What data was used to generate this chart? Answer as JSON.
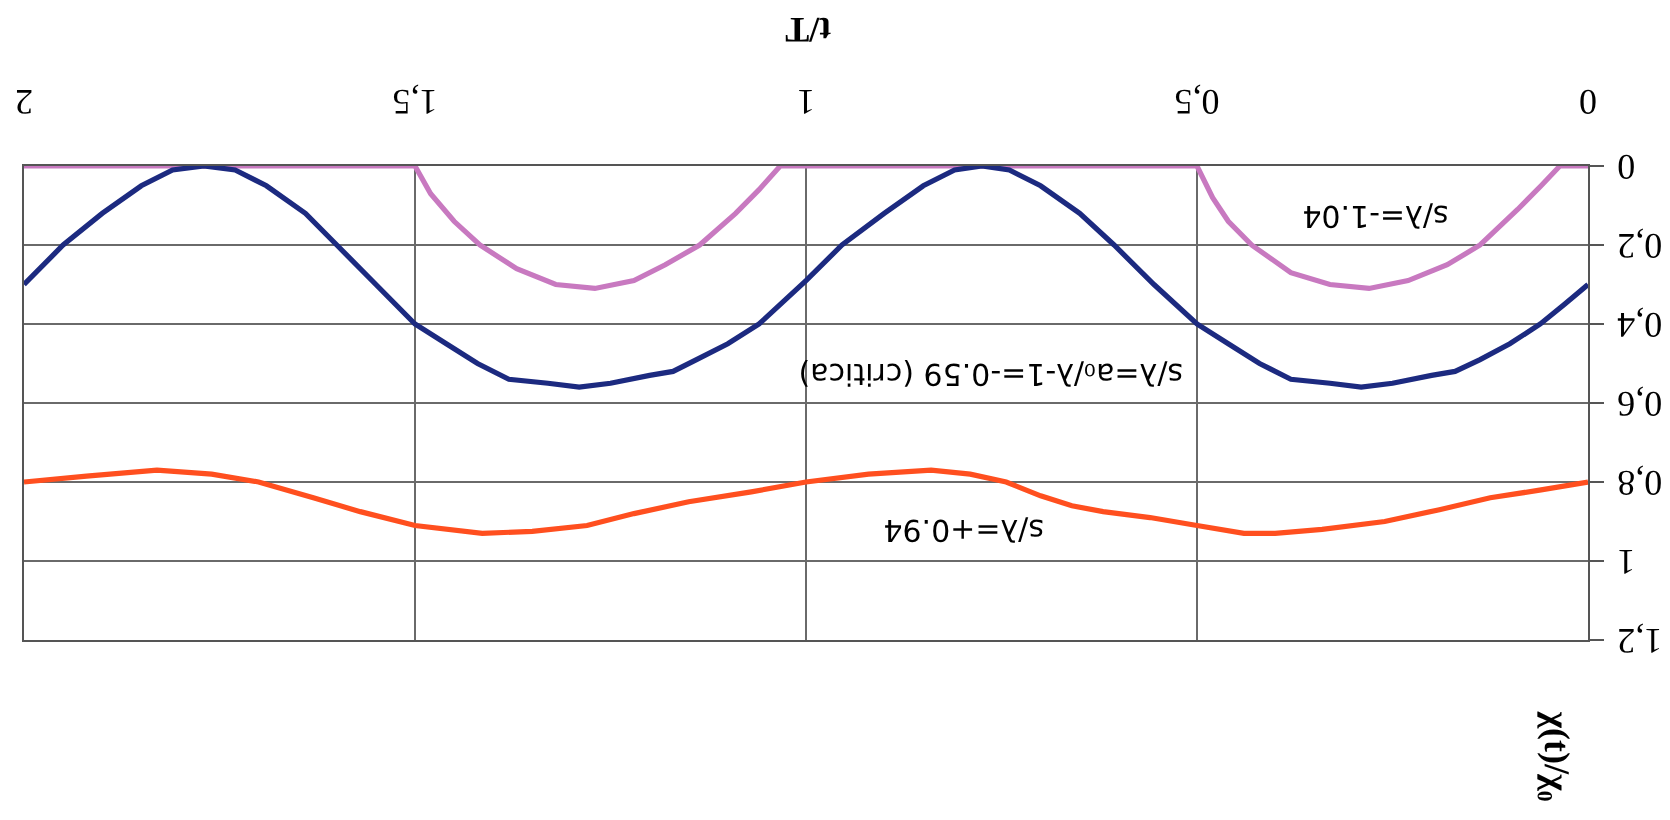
{
  "chart_data": {
    "type": "line",
    "xlabel": "t/T",
    "ylabel": "χ(t)/χ₀",
    "xlim": [
      2,
      0
    ],
    "ylim": [
      1.2,
      0
    ],
    "xticks": [
      0,
      {
        "value": 0.5,
        "label": "0,5"
      },
      1,
      {
        "value": 1.5,
        "label": "1,5"
      },
      2
    ],
    "yticks": [
      0,
      {
        "value": 0.2,
        "label": "0,2"
      },
      {
        "value": 0.4,
        "label": "0,4"
      },
      {
        "value": 0.6,
        "label": "0,6"
      },
      {
        "value": 0.8,
        "label": "0,8"
      },
      1,
      {
        "value": 1.2,
        "label": "1,2"
      }
    ],
    "grid": true,
    "series": [
      {
        "color": "#c879c0",
        "x": [
          0,
          0.036,
          0.06,
          0.09,
          0.138,
          0.18,
          0.23,
          0.28,
          0.33,
          0.38,
          0.43,
          0.46,
          0.48,
          0.5,
          0.75,
          1.033,
          1.06,
          1.09,
          1.136,
          1.18,
          1.22,
          1.27,
          1.32,
          1.37,
          1.417,
          1.45,
          1.48,
          1.5,
          1.75,
          2
        ],
        "values": [
          0,
          0,
          0.05,
          0.11,
          0.2,
          0.25,
          0.29,
          0.31,
          0.3,
          0.27,
          0.2,
          0.14,
          0.08,
          0,
          0,
          0,
          0.06,
          0.12,
          0.2,
          0.25,
          0.29,
          0.31,
          0.3,
          0.26,
          0.2,
          0.14,
          0.07,
          0,
          0,
          0
        ]
      },
      {
        "color": "#1c2a80",
        "x": [
          0,
          0.03,
          0.061,
          0.1,
          0.138,
          0.17,
          0.2,
          0.25,
          0.29,
          0.33,
          0.38,
          0.42,
          0.46,
          0.5,
          0.555,
          0.606,
          0.65,
          0.7,
          0.74,
          0.775,
          0.81,
          0.85,
          0.9,
          0.954,
          1,
          1.06,
          1.1,
          1.14,
          1.17,
          1.2,
          1.25,
          1.29,
          1.33,
          1.38,
          1.42,
          1.46,
          1.5,
          1.55,
          1.6,
          1.64,
          1.69,
          1.73,
          1.77,
          1.81,
          1.85,
          1.9,
          1.95,
          2
        ],
        "values": [
          0.3,
          0.35,
          0.4,
          0.45,
          0.49,
          0.52,
          0.53,
          0.55,
          0.56,
          0.55,
          0.54,
          0.5,
          0.45,
          0.4,
          0.3,
          0.2,
          0.12,
          0.05,
          0.01,
          0,
          0.01,
          0.05,
          0.12,
          0.2,
          0.29,
          0.4,
          0.45,
          0.49,
          0.52,
          0.53,
          0.55,
          0.56,
          0.55,
          0.54,
          0.5,
          0.45,
          0.4,
          0.3,
          0.2,
          0.12,
          0.05,
          0.01,
          0,
          0.01,
          0.05,
          0.12,
          0.2,
          0.3
        ]
      },
      {
        "color": "#ff4f1f",
        "x": [
          0,
          0.06,
          0.125,
          0.19,
          0.26,
          0.34,
          0.4,
          0.44,
          0.5,
          0.56,
          0.62,
          0.66,
          0.7,
          0.744,
          0.79,
          0.84,
          0.92,
          1,
          1.07,
          1.15,
          1.22,
          1.28,
          1.35,
          1.414,
          1.5,
          1.57,
          1.63,
          1.7,
          1.76,
          1.83,
          1.92,
          2
        ],
        "values": [
          0.8,
          0.82,
          0.84,
          0.87,
          0.9,
          0.92,
          0.93,
          0.93,
          0.91,
          0.89,
          0.875,
          0.86,
          0.835,
          0.8,
          0.78,
          0.77,
          0.78,
          0.8,
          0.825,
          0.85,
          0.88,
          0.91,
          0.925,
          0.93,
          0.91,
          0.875,
          0.84,
          0.8,
          0.78,
          0.77,
          0.785,
          0.8
        ]
      }
    ],
    "annotations": [
      "s/λ=-1.04",
      "s/λ=a₀/λ-1=-0.59 (critica)",
      "s/λ=+0.94"
    ]
  }
}
